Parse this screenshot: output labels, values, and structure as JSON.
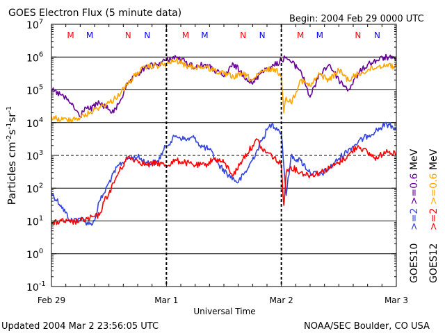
{
  "header": {
    "title": "GOES Electron Flux (5 minute data)",
    "begin": "Begin: 2004 Feb 29 0000 UTC"
  },
  "footer": {
    "updated": "Updated 2004 Mar  2 23:56:05 UTC",
    "credit": "NOAA/SEC Boulder, CO USA"
  },
  "colors": {
    "goes10_hi": "#3344dd",
    "goes12_hi": "#ff0000",
    "goes10_lo": "#660099",
    "goes12_lo": "#ffa500",
    "marker_m": "#ff0000",
    "marker_n_red": "#ff0000",
    "marker_n_blue": "#0000ff"
  },
  "chart_data": {
    "type": "line",
    "title": "GOES Electron Flux (5 minute data)",
    "xlabel": "Universal Time",
    "ylabel": "Particles cm-2s-1sr-1",
    "ylabel_parts": {
      "base": "Particles cm",
      "e1": "-2",
      "m1": "s",
      "e2": "-1",
      "m2": "sr",
      "e3": "-1"
    },
    "y_scale": "log",
    "ylim": [
      0.1,
      10000000
    ],
    "y_ticks": [
      {
        "value": 0.1,
        "base": "10",
        "exp": "-1"
      },
      {
        "value": 1,
        "base": "10",
        "exp": "0"
      },
      {
        "value": 10,
        "base": "10",
        "exp": "1"
      },
      {
        "value": 100,
        "base": "10",
        "exp": "2"
      },
      {
        "value": 1000,
        "base": "10",
        "exp": "3"
      },
      {
        "value": 10000,
        "base": "10",
        "exp": "4"
      },
      {
        "value": 100000,
        "base": "10",
        "exp": "5"
      },
      {
        "value": 1000000,
        "base": "10",
        "exp": "6"
      },
      {
        "value": 10000000,
        "base": "10",
        "exp": "7"
      }
    ],
    "xlim": [
      "2004-02-29",
      "2004-03-03"
    ],
    "x_ticks": [
      {
        "date": "2004-02-29",
        "label": "Feb 29"
      },
      {
        "date": "2004-03-01",
        "label": "Mar 1"
      },
      {
        "date": "2004-03-02",
        "label": "Mar 2"
      },
      {
        "date": "2004-03-03",
        "label": "Mar 3"
      }
    ],
    "solid_gridlines": [
      1,
      10,
      100,
      10000,
      100000,
      1000000
    ],
    "dashed_gridlines": [
      1000
    ],
    "day_boundaries": [
      "2004-03-01",
      "2004-03-02"
    ],
    "markers": [
      {
        "label": "M",
        "time": "2004-02-29 04:00",
        "color": "#ff0000"
      },
      {
        "label": "M",
        "time": "2004-02-29 08:00",
        "color": "#0000ff"
      },
      {
        "label": "N",
        "time": "2004-02-29 16:00",
        "color": "#ff0000"
      },
      {
        "label": "N",
        "time": "2004-02-29 20:00",
        "color": "#0000ff"
      },
      {
        "label": "M",
        "time": "2004-03-01 04:00",
        "color": "#ff0000"
      },
      {
        "label": "M",
        "time": "2004-03-01 08:00",
        "color": "#0000ff"
      },
      {
        "label": "N",
        "time": "2004-03-01 16:00",
        "color": "#ff0000"
      },
      {
        "label": "N",
        "time": "2004-03-01 20:00",
        "color": "#0000ff"
      },
      {
        "label": "M",
        "time": "2004-03-02 04:00",
        "color": "#ff0000"
      },
      {
        "label": "M",
        "time": "2004-03-02 08:00",
        "color": "#0000ff"
      },
      {
        "label": "N",
        "time": "2004-03-02 16:00",
        "color": "#ff0000"
      },
      {
        "label": "N",
        "time": "2004-03-02 20:00",
        "color": "#0000ff"
      }
    ],
    "legend": {
      "placement": "right",
      "left_col": [
        {
          "text": "GOES10",
          "color": "#000000"
        },
        {
          "text": ">=2",
          "color": "#3344dd"
        },
        {
          "text": ">=0.6",
          "color": "#660099"
        },
        {
          "text": "MeV",
          "color": "#000000"
        }
      ],
      "right_col": [
        {
          "text": "GOES12",
          "color": "#000000"
        },
        {
          "text": ">=2",
          "color": "#ff0000"
        },
        {
          "text": ">=0.6",
          "color": "#ffa500"
        },
        {
          "text": "MeV",
          "color": "#000000"
        }
      ]
    },
    "series": [
      {
        "name": "GOES10 >=2 MeV",
        "color": "#3344dd",
        "x": [
          "2004-02-29 00:00",
          "2004-02-29 02:00",
          "2004-02-29 04:00",
          "2004-02-29 06:00",
          "2004-02-29 08:00",
          "2004-02-29 09:00",
          "2004-02-29 10:00",
          "2004-02-29 11:00",
          "2004-02-29 12:00",
          "2004-02-29 14:00",
          "2004-02-29 16:00",
          "2004-02-29 18:00",
          "2004-02-29 20:00",
          "2004-02-29 22:00",
          "2004-03-01 00:00",
          "2004-03-01 02:00",
          "2004-03-01 04:00",
          "2004-03-01 06:00",
          "2004-03-01 07:00",
          "2004-03-01 09:00",
          "2004-03-01 11:00",
          "2004-03-01 13:00",
          "2004-03-01 15:00",
          "2004-03-01 17:00",
          "2004-03-01 19:00",
          "2004-03-01 20:00",
          "2004-03-01 21:00",
          "2004-03-01 22:00",
          "2004-03-01 23:00",
          "2004-03-02 00:00",
          "2004-03-02 01:00",
          "2004-03-02 02:00",
          "2004-03-02 04:00",
          "2004-03-02 06:00",
          "2004-03-02 08:00",
          "2004-03-02 10:00",
          "2004-03-02 12:00",
          "2004-03-02 14:00",
          "2004-03-02 16:00",
          "2004-03-02 18:00",
          "2004-03-02 20:00",
          "2004-03-02 22:00",
          "2004-03-03 00:00"
        ],
        "y": [
          70,
          30,
          10,
          12,
          8,
          10,
          40,
          70,
          150,
          500,
          800,
          900,
          600,
          600,
          2000,
          4000,
          3000,
          3500,
          2000,
          1500,
          500,
          250,
          150,
          400,
          1500,
          3000,
          6000,
          9000,
          7000,
          5000,
          60,
          900,
          700,
          300,
          250,
          400,
          800,
          1500,
          2500,
          4000,
          6000,
          9000,
          7000
        ]
      },
      {
        "name": "GOES12 >=2 MeV",
        "color": "#ff0000",
        "x": [
          "2004-02-29 00:00",
          "2004-02-29 02:00",
          "2004-02-29 04:00",
          "2004-02-29 06:00",
          "2004-02-29 08:00",
          "2004-02-29 10:00",
          "2004-02-29 11:00",
          "2004-02-29 12:00",
          "2004-02-29 14:00",
          "2004-02-29 16:00",
          "2004-02-29 18:00",
          "2004-02-29 20:00",
          "2004-02-29 22:00",
          "2004-03-01 00:00",
          "2004-03-01 02:00",
          "2004-03-01 04:00",
          "2004-03-01 06:00",
          "2004-03-01 08:00",
          "2004-03-01 10:00",
          "2004-03-01 12:00",
          "2004-03-01 14:00",
          "2004-03-01 16:00",
          "2004-03-01 18:00",
          "2004-03-01 19:00",
          "2004-03-01 20:00",
          "2004-03-01 22:00",
          "2004-03-02 00:00",
          "2004-03-02 00:30",
          "2004-03-02 01:00",
          "2004-03-02 02:00",
          "2004-03-02 04:00",
          "2004-03-02 06:00",
          "2004-03-02 08:00",
          "2004-03-02 10:00",
          "2004-03-02 12:00",
          "2004-03-02 14:00",
          "2004-03-02 16:00",
          "2004-03-02 18:00",
          "2004-03-02 20:00",
          "2004-03-02 22:00",
          "2004-03-03 00:00"
        ],
        "y": [
          8,
          10,
          9,
          10,
          12,
          15,
          40,
          70,
          300,
          900,
          700,
          500,
          600,
          500,
          700,
          600,
          500,
          500,
          800,
          600,
          250,
          800,
          2000,
          3000,
          1500,
          1000,
          500,
          30,
          300,
          450,
          300,
          250,
          300,
          400,
          600,
          1000,
          2000,
          1200,
          800,
          1500,
          1000
        ]
      },
      {
        "name": "GOES10 >=0.6 MeV",
        "color": "#660099",
        "x": [
          "2004-02-29 00:00",
          "2004-02-29 02:00",
          "2004-02-29 04:00",
          "2004-02-29 06:00",
          "2004-02-29 07:00",
          "2004-02-29 08:00",
          "2004-02-29 10:00",
          "2004-02-29 12:00",
          "2004-02-29 13:00",
          "2004-02-29 16:00",
          "2004-02-29 18:00",
          "2004-02-29 20:00",
          "2004-02-29 22:00",
          "2004-03-01 00:00",
          "2004-03-01 02:00",
          "2004-03-01 04:00",
          "2004-03-01 06:00",
          "2004-03-01 08:00",
          "2004-03-01 10:00",
          "2004-03-01 12:00",
          "2004-03-01 14:00",
          "2004-03-01 16:00",
          "2004-03-01 18:00",
          "2004-03-01 20:00",
          "2004-03-01 22:00",
          "2004-03-02 00:00",
          "2004-03-02 01:00",
          "2004-03-02 02:00",
          "2004-03-02 04:00",
          "2004-03-02 06:00",
          "2004-03-02 08:00",
          "2004-03-02 10:00",
          "2004-03-02 12:00",
          "2004-03-02 14:00",
          "2004-03-02 16:00",
          "2004-03-02 18:00",
          "2004-03-02 20:00",
          "2004-03-02 22:00",
          "2004-03-03 00:00"
        ],
        "y": [
          100000,
          70000,
          40000,
          15000,
          30000,
          25000,
          40000,
          25000,
          20000,
          150000,
          300000,
          500000,
          600000,
          800000,
          1000000,
          700000,
          500000,
          600000,
          400000,
          250000,
          600000,
          300000,
          150000,
          400000,
          500000,
          800000,
          1000000,
          700000,
          400000,
          60000,
          300000,
          600000,
          200000,
          100000,
          300000,
          600000,
          800000,
          1000000,
          800000
        ]
      },
      {
        "name": "GOES12 >=0.6 MeV",
        "color": "#ffa500",
        "x": [
          "2004-02-29 00:00",
          "2004-02-29 02:00",
          "2004-02-29 04:00",
          "2004-02-29 06:00",
          "2004-02-29 08:00",
          "2004-02-29 10:00",
          "2004-02-29 12:00",
          "2004-02-29 13:00",
          "2004-02-29 16:00",
          "2004-02-29 18:00",
          "2004-02-29 20:00",
          "2004-02-29 22:00",
          "2004-03-01 00:00",
          "2004-03-01 02:00",
          "2004-03-01 04:00",
          "2004-03-01 06:00",
          "2004-03-01 08:00",
          "2004-03-01 10:00",
          "2004-03-01 12:00",
          "2004-03-01 14:00",
          "2004-03-01 16:00",
          "2004-03-01 18:00",
          "2004-03-01 20:00",
          "2004-03-01 22:00",
          "2004-03-02 00:00",
          "2004-03-02 00:30",
          "2004-03-02 01:00",
          "2004-03-02 02:00",
          "2004-03-02 04:00",
          "2004-03-02 06:00",
          "2004-03-02 08:00",
          "2004-03-02 10:00",
          "2004-03-02 12:00",
          "2004-03-02 14:00",
          "2004-03-02 16:00",
          "2004-03-02 18:00",
          "2004-03-02 20:00",
          "2004-03-02 22:00",
          "2004-03-03 00:00"
        ],
        "y": [
          15000,
          12000,
          13000,
          14000,
          20000,
          30000,
          40000,
          50000,
          150000,
          350000,
          500000,
          550000,
          600000,
          800000,
          550000,
          500000,
          500000,
          400000,
          300000,
          250000,
          300000,
          200000,
          350000,
          450000,
          300000,
          20000,
          60000,
          40000,
          200000,
          130000,
          300000,
          200000,
          400000,
          200000,
          300000,
          400000,
          500000,
          600000,
          500000
        ]
      }
    ]
  }
}
